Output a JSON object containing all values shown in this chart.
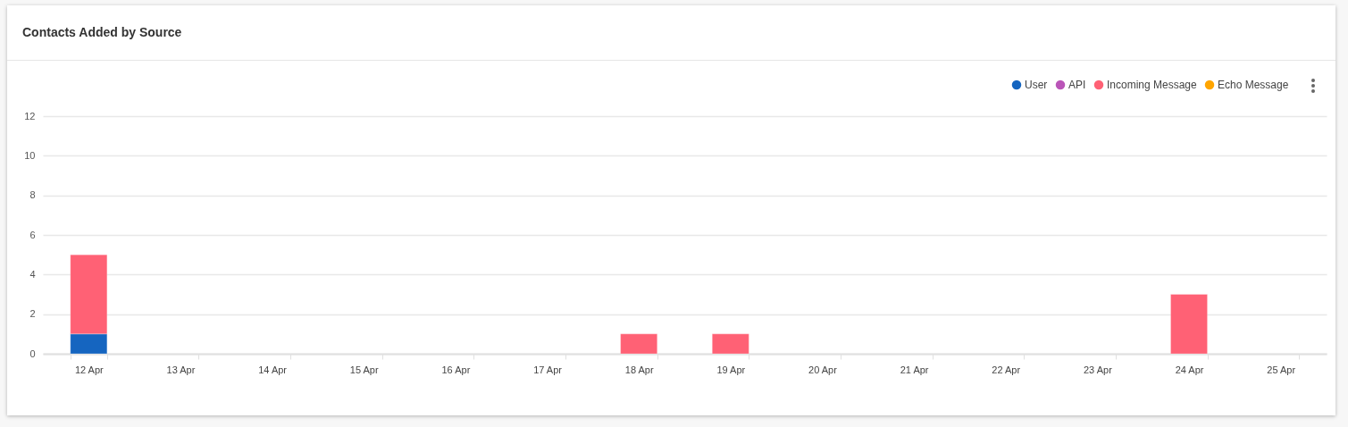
{
  "chart_data": {
    "type": "bar",
    "title": "Contacts Added by Source",
    "categories": [
      "12 Apr",
      "13 Apr",
      "14 Apr",
      "15 Apr",
      "16 Apr",
      "17 Apr",
      "18 Apr",
      "19 Apr",
      "20 Apr",
      "21 Apr",
      "22 Apr",
      "23 Apr",
      "24 Apr",
      "25 Apr"
    ],
    "series": [
      {
        "name": "User",
        "color": "#1565c0",
        "values": [
          1,
          0,
          0,
          0,
          0,
          0,
          0,
          0,
          0,
          0,
          0,
          0,
          0,
          0
        ]
      },
      {
        "name": "API",
        "color": "#ba55b8",
        "values": [
          0,
          0,
          0,
          0,
          0,
          0,
          0,
          0,
          0,
          0,
          0,
          0,
          0,
          0
        ]
      },
      {
        "name": "Incoming Message",
        "color": "#ff6175",
        "values": [
          4,
          0,
          0,
          0,
          0,
          0,
          1,
          1,
          0,
          0,
          0,
          0,
          3,
          0
        ]
      },
      {
        "name": "Echo Message",
        "color": "#ffa500",
        "values": [
          0,
          0,
          0,
          0,
          0,
          0,
          0,
          0,
          0,
          0,
          0,
          0,
          0,
          0
        ]
      }
    ],
    "stacked": true,
    "ylim": [
      0,
      12
    ],
    "yticks": [
      0,
      2,
      4,
      6,
      8,
      10,
      12
    ],
    "grid": "y",
    "legend": "top right"
  }
}
